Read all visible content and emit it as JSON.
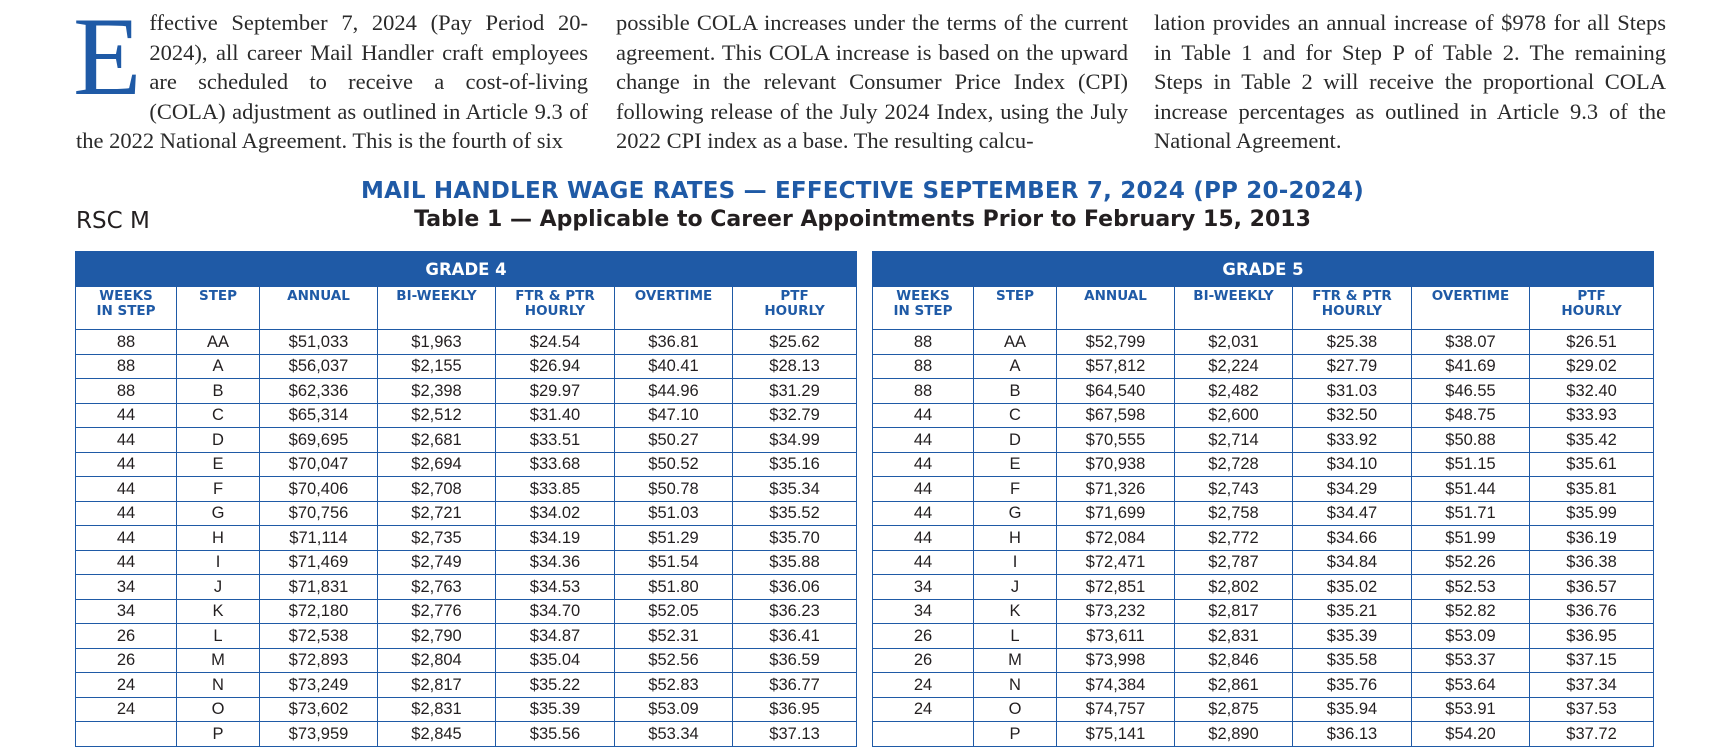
{
  "intro": {
    "dropcap": "E",
    "col1": "ffective September 7, 2024 (Pay Period 20-2024), all career Mail Handler craft employees are scheduled to receive a cost-of-living (COLA) adjustment as outlined in Article 9.3 of the 2022 National Agreement. This is the fourth of six",
    "col2": "possible COLA increases under the terms of the current agreement. This COLA increase is based on the upward change in the relevant Consumer Price Index (CPI) following release of the July 2024 Index, using the July 2022 CPI index as a base.  The resulting calcu-",
    "col3": "lation provides an annual increase of $978 for all Steps in Table 1 and for Step P of Table 2. The remaining Steps in Table 2 will receive the proportional COLA increase percentages as outlined in Article 9.3 of the National Agreement."
  },
  "heading": "MAIL HANDLER WAGE RATES — EFFECTIVE SEPTEMBER 7, 2024 (PP 20-2024)",
  "subheading": "Table 1 — Applicable to Career Appointments Prior to February 15, 2013",
  "rsc_label": "RSC M",
  "columns": [
    [
      "WEEKS",
      "IN STEP"
    ],
    [
      "STEP",
      ""
    ],
    [
      "ANNUAL",
      ""
    ],
    [
      "BI-WEEKLY",
      ""
    ],
    [
      "FTR & PTR",
      "HOURLY"
    ],
    [
      "OVERTIME",
      ""
    ],
    [
      "PTF",
      "HOURLY"
    ]
  ],
  "tables": [
    {
      "title": "GRADE 4",
      "rows": [
        [
          "88",
          "AA",
          "$51,033",
          "$1,963",
          "$24.54",
          "$36.81",
          "$25.62"
        ],
        [
          "88",
          "A",
          "$56,037",
          "$2,155",
          "$26.94",
          "$40.41",
          "$28.13"
        ],
        [
          "88",
          "B",
          "$62,336",
          "$2,398",
          "$29.97",
          "$44.96",
          "$31.29"
        ],
        [
          "44",
          "C",
          "$65,314",
          "$2,512",
          "$31.40",
          "$47.10",
          "$32.79"
        ],
        [
          "44",
          "D",
          "$69,695",
          "$2,681",
          "$33.51",
          "$50.27",
          "$34.99"
        ],
        [
          "44",
          "E",
          "$70,047",
          "$2,694",
          "$33.68",
          "$50.52",
          "$35.16"
        ],
        [
          "44",
          "F",
          "$70,406",
          "$2,708",
          "$33.85",
          "$50.78",
          "$35.34"
        ],
        [
          "44",
          "G",
          "$70,756",
          "$2,721",
          "$34.02",
          "$51.03",
          "$35.52"
        ],
        [
          "44",
          "H",
          "$71,114",
          "$2,735",
          "$34.19",
          "$51.29",
          "$35.70"
        ],
        [
          "44",
          "I",
          "$71,469",
          "$2,749",
          "$34.36",
          "$51.54",
          "$35.88"
        ],
        [
          "34",
          "J",
          "$71,831",
          "$2,763",
          "$34.53",
          "$51.80",
          "$36.06"
        ],
        [
          "34",
          "K",
          "$72,180",
          "$2,776",
          "$34.70",
          "$52.05",
          "$36.23"
        ],
        [
          "26",
          "L",
          "$72,538",
          "$2,790",
          "$34.87",
          "$52.31",
          "$36.41"
        ],
        [
          "26",
          "M",
          "$72,893",
          "$2,804",
          "$35.04",
          "$52.56",
          "$36.59"
        ],
        [
          "24",
          "N",
          "$73,249",
          "$2,817",
          "$35.22",
          "$52.83",
          "$36.77"
        ],
        [
          "24",
          "O",
          "$73,602",
          "$2,831",
          "$35.39",
          "$53.09",
          "$36.95"
        ],
        [
          "",
          "P",
          "$73,959",
          "$2,845",
          "$35.56",
          "$53.34",
          "$37.13"
        ]
      ]
    },
    {
      "title": "GRADE 5",
      "rows": [
        [
          "88",
          "AA",
          "$52,799",
          "$2,031",
          "$25.38",
          "$38.07",
          "$26.51"
        ],
        [
          "88",
          "A",
          "$57,812",
          "$2,224",
          "$27.79",
          "$41.69",
          "$29.02"
        ],
        [
          "88",
          "B",
          "$64,540",
          "$2,482",
          "$31.03",
          "$46.55",
          "$32.40"
        ],
        [
          "44",
          "C",
          "$67,598",
          "$2,600",
          "$32.50",
          "$48.75",
          "$33.93"
        ],
        [
          "44",
          "D",
          "$70,555",
          "$2,714",
          "$33.92",
          "$50.88",
          "$35.42"
        ],
        [
          "44",
          "E",
          "$70,938",
          "$2,728",
          "$34.10",
          "$51.15",
          "$35.61"
        ],
        [
          "44",
          "F",
          "$71,326",
          "$2,743",
          "$34.29",
          "$51.44",
          "$35.81"
        ],
        [
          "44",
          "G",
          "$71,699",
          "$2,758",
          "$34.47",
          "$51.71",
          "$35.99"
        ],
        [
          "44",
          "H",
          "$72,084",
          "$2,772",
          "$34.66",
          "$51.99",
          "$36.19"
        ],
        [
          "44",
          "I",
          "$72,471",
          "$2,787",
          "$34.84",
          "$52.26",
          "$36.38"
        ],
        [
          "34",
          "J",
          "$72,851",
          "$2,802",
          "$35.02",
          "$52.53",
          "$36.57"
        ],
        [
          "34",
          "K",
          "$73,232",
          "$2,817",
          "$35.21",
          "$52.82",
          "$36.76"
        ],
        [
          "26",
          "L",
          "$73,611",
          "$2,831",
          "$35.39",
          "$53.09",
          "$36.95"
        ],
        [
          "26",
          "M",
          "$73,998",
          "$2,846",
          "$35.58",
          "$53.37",
          "$37.15"
        ],
        [
          "24",
          "N",
          "$74,384",
          "$2,861",
          "$35.76",
          "$53.64",
          "$37.34"
        ],
        [
          "24",
          "O",
          "$74,757",
          "$2,875",
          "$35.94",
          "$53.91",
          "$37.53"
        ],
        [
          "",
          "P",
          "$75,141",
          "$2,890",
          "$36.13",
          "$54.20",
          "$37.72"
        ]
      ]
    }
  ],
  "colors": {
    "accent": "#1f5aa6",
    "text": "#231f20"
  }
}
